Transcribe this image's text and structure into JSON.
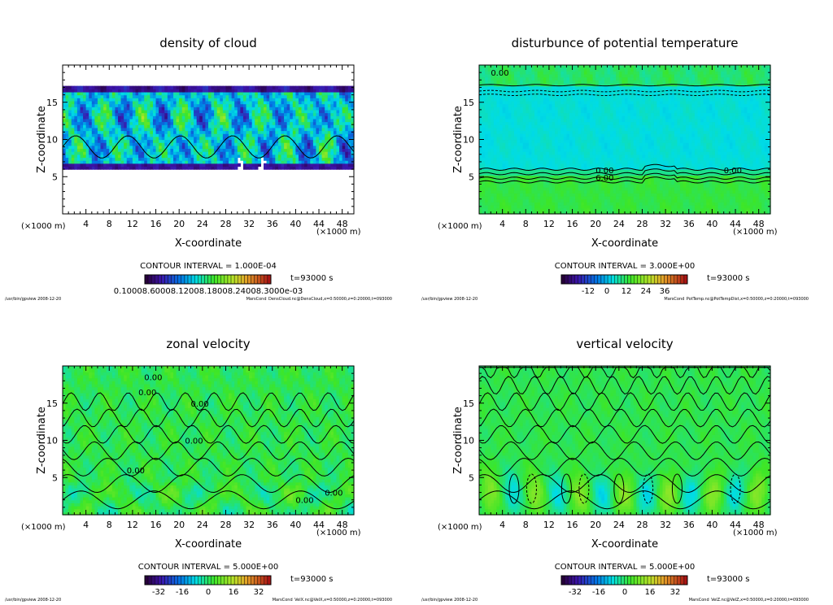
{
  "chart_data": [
    {
      "type": "heatmap",
      "title": "density of cloud",
      "xlabel": "X-coordinate",
      "ylabel": "Z-coordinate",
      "x_unit_label": "(×1000 m)",
      "xlim": [
        0,
        50
      ],
      "ylim": [
        0,
        20
      ],
      "xticks": [
        "4",
        "8",
        "12",
        "16",
        "20",
        "24",
        "28",
        "32",
        "36",
        "40",
        "44",
        "48"
      ],
      "yticks": [
        "5",
        "10",
        "15"
      ],
      "contour_interval": "CONTOUR INTERVAL = 1.000E-04",
      "time": "t=93000 s",
      "colorbar_labels": [
        "0.1000e-04",
        "0.6000e-04",
        "0.1200e-03",
        "0.1800e-03",
        "0.2400e-03",
        "0.3000e-03"
      ],
      "colorbar_label_text": "0.10008.60008.12008.18008.24008.3000e-03",
      "footer_left": "/usr/bin/gpview   2008-12-20",
      "footer_right": "MarsCond_DensCloud.nc@DensCloud,x=0:50000,z=0:20000,t=093000",
      "field": "cloud",
      "contour_labels": []
    },
    {
      "type": "heatmap",
      "title": "disturbunce of potential temperature",
      "xlabel": "X-coordinate",
      "ylabel": "Z-coordinate",
      "x_unit_label": "(×1000 m)",
      "xlim": [
        0,
        50
      ],
      "ylim": [
        0,
        20
      ],
      "xticks": [
        "4",
        "8",
        "12",
        "16",
        "20",
        "24",
        "28",
        "32",
        "36",
        "40",
        "44",
        "48"
      ],
      "yticks": [
        "5",
        "10",
        "15"
      ],
      "contour_interval": "CONTOUR INTERVAL = 3.000E+00",
      "time": "t=93000 s",
      "colorbar_labels": [
        "-12",
        "0",
        "12",
        "24",
        "36"
      ],
      "footer_left": "/usr/bin/gpview   2008-12-20",
      "footer_right": "MarsCond_PotTemp.nc@PotTempDist,x=0:50000,z=0:20000,t=093000",
      "field": "pottemp",
      "contour_labels": [
        "0.00",
        "0.00",
        "0.00",
        "6.00"
      ]
    },
    {
      "type": "heatmap",
      "title": "zonal velocity",
      "xlabel": "X-coordinate",
      "ylabel": "Z-coordinate",
      "x_unit_label": "(×1000 m)",
      "xlim": [
        0,
        50
      ],
      "ylim": [
        0,
        20
      ],
      "xticks": [
        "4",
        "8",
        "12",
        "16",
        "20",
        "24",
        "28",
        "32",
        "36",
        "40",
        "44",
        "48"
      ],
      "yticks": [
        "5",
        "10",
        "15"
      ],
      "contour_interval": "CONTOUR INTERVAL = 5.000E+00",
      "time": "t=93000 s",
      "colorbar_labels": [
        "-32",
        "-16",
        "0",
        "16",
        "32"
      ],
      "footer_left": "/usr/bin/gpview   2008-12-20",
      "footer_right": "MarsCond_VelX.nc@VelX,x=0:50000,z=0:20000,t=093000",
      "field": "velx",
      "contour_labels": [
        "0.00",
        "0.00",
        "0.00",
        "0.00",
        "0.00",
        "0.00",
        "0.00"
      ]
    },
    {
      "type": "heatmap",
      "title": "vertical velocity",
      "xlabel": "X-coordinate",
      "ylabel": "Z-coordinate",
      "x_unit_label": "(×1000 m)",
      "xlim": [
        0,
        50
      ],
      "ylim": [
        0,
        20
      ],
      "xticks": [
        "4",
        "8",
        "12",
        "16",
        "20",
        "24",
        "28",
        "32",
        "36",
        "40",
        "44",
        "48"
      ],
      "yticks": [
        "5",
        "10",
        "15"
      ],
      "contour_interval": "CONTOUR INTERVAL = 5.000E+00",
      "time": "t=93000 s",
      "colorbar_labels": [
        "-32",
        "-16",
        "0",
        "16",
        "32"
      ],
      "footer_left": "/usr/bin/gpview   2008-12-20",
      "footer_right": "MarsCond_VelZ.nc@VelZ,x=0:50000,z=0:20000,t=093000",
      "field": "velz",
      "contour_labels": []
    }
  ]
}
